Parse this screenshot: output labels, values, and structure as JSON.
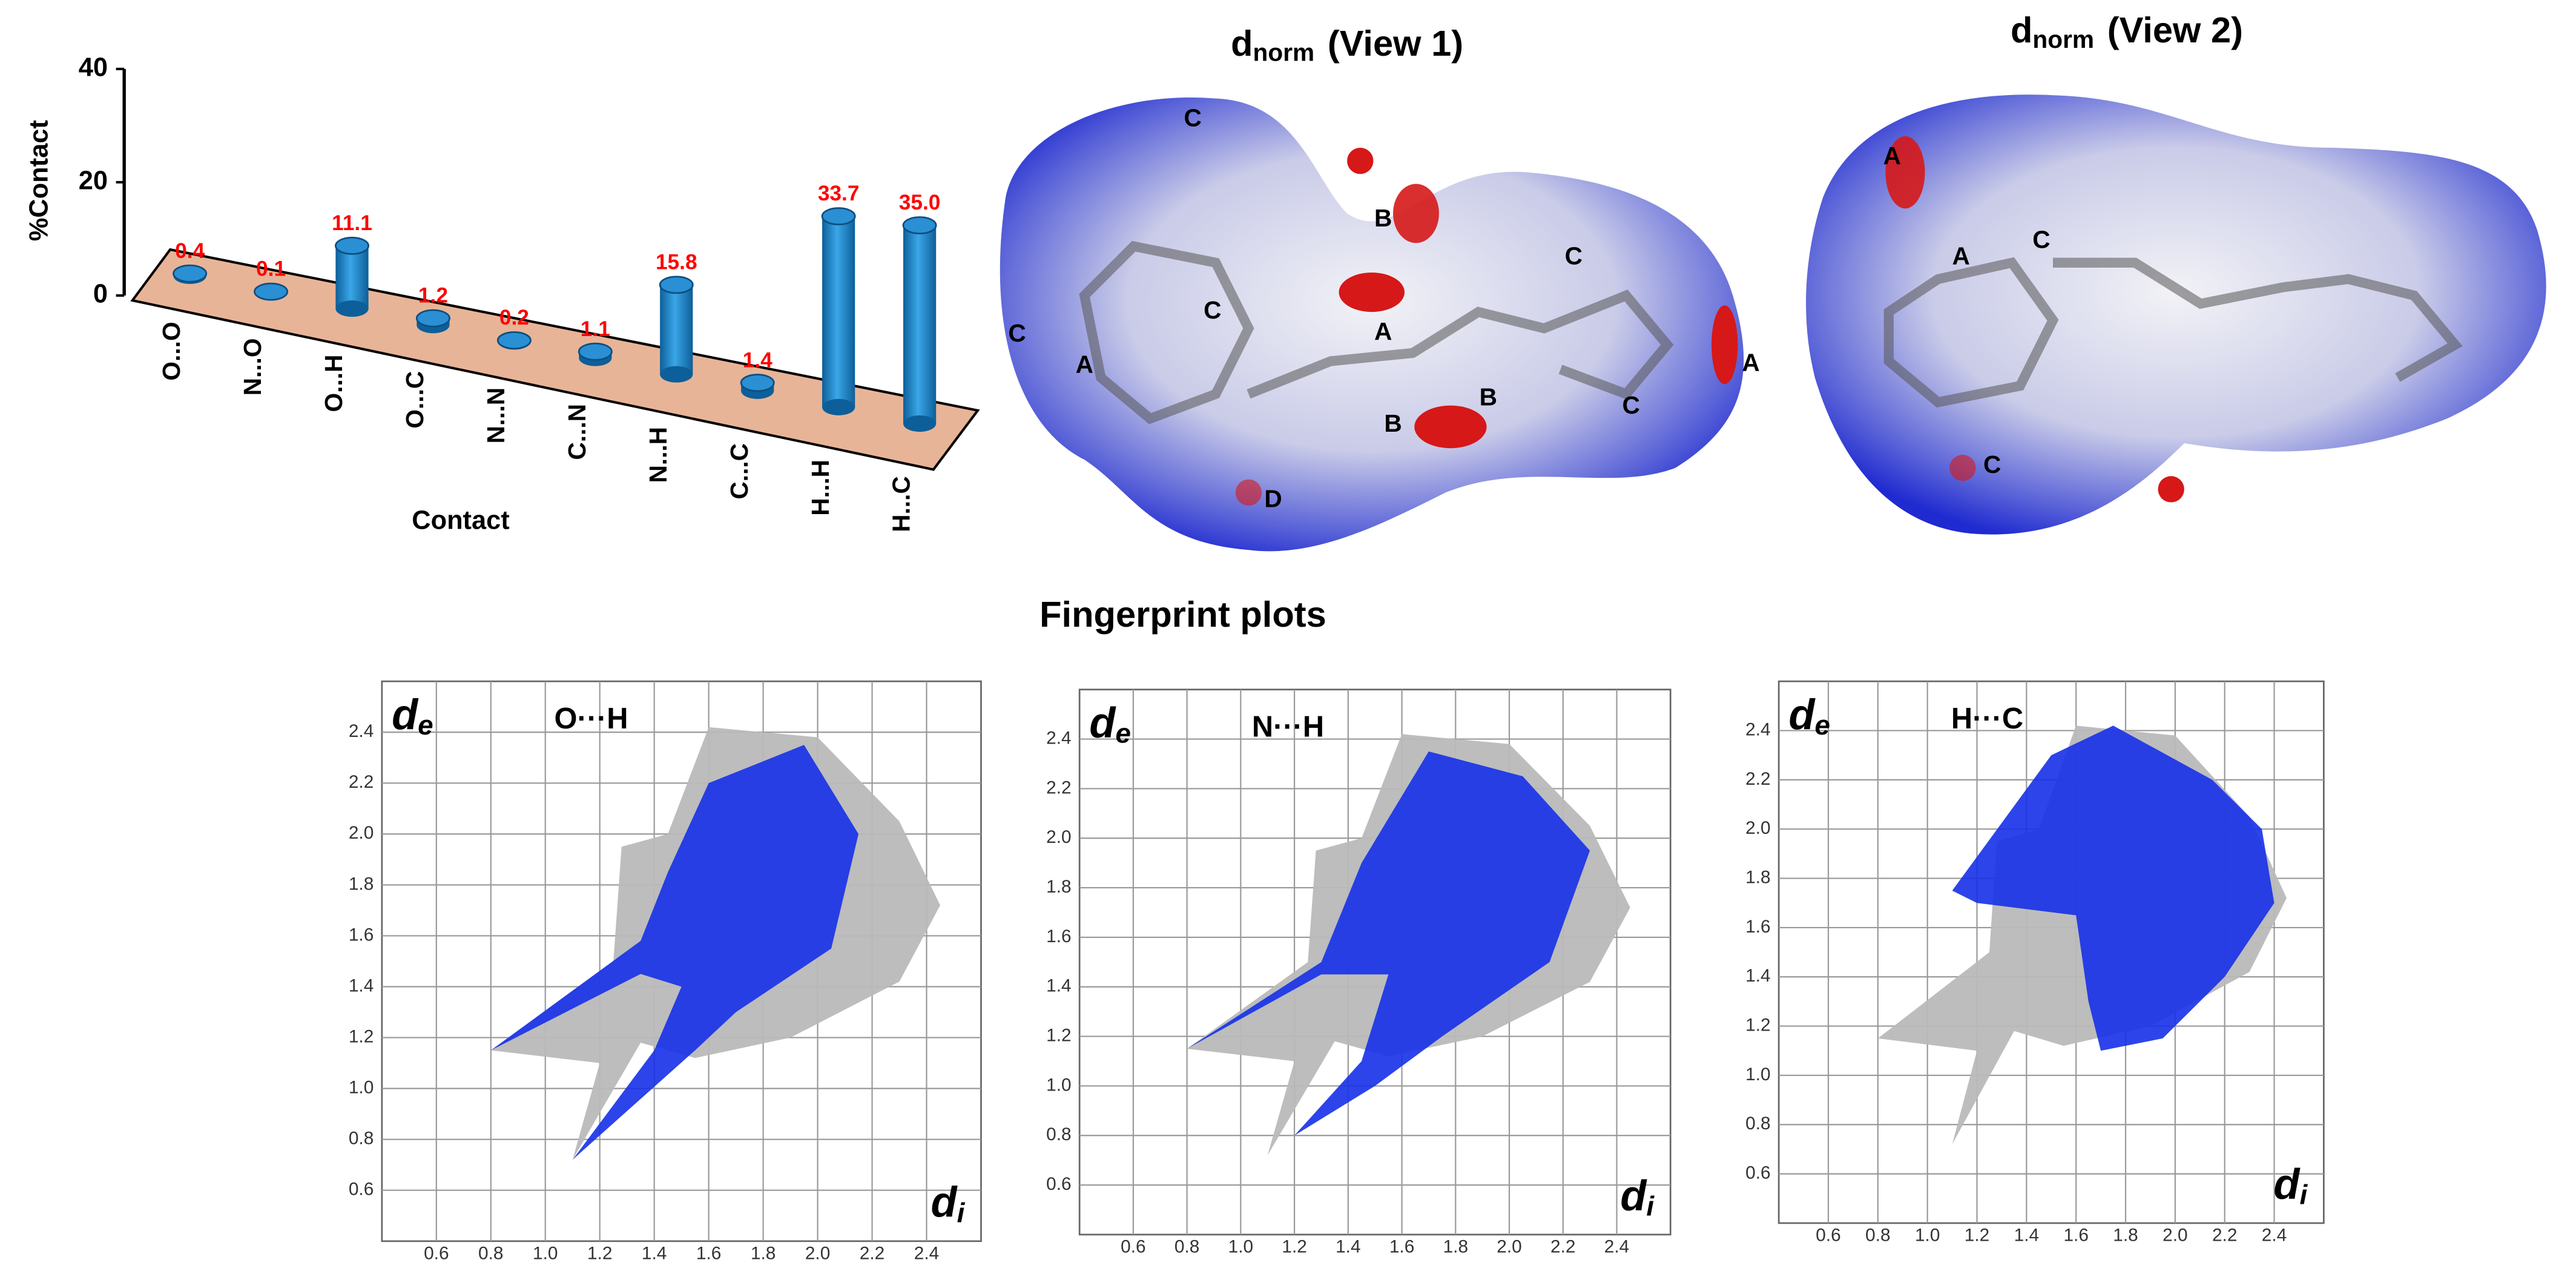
{
  "chart_data": [
    {
      "type": "bar3d",
      "ylabel": "%Contact",
      "xlabel": "Contact",
      "categories": [
        "O...O",
        "N...O",
        "O...H",
        "O...C",
        "N...N",
        "C...N",
        "N...H",
        "C...C",
        "H...H",
        "H...C"
      ],
      "values": [
        0.4,
        0.1,
        11.1,
        1.2,
        0.2,
        1.1,
        15.8,
        1.4,
        33.7,
        35.0
      ],
      "value_labels": [
        "0.4",
        "0.1",
        "11.1",
        "1.2",
        "0.2",
        "1.1",
        "15.8",
        "1.4",
        "33.7",
        "35.0"
      ],
      "ylim": [
        0,
        40
      ],
      "yticks": [
        0,
        20,
        40
      ],
      "color": "#1b8ad0",
      "label_color": "#ff0000",
      "floor_color": "#e8b497"
    },
    {
      "type": "fingerprint",
      "title": "O···H",
      "xlabel": "d",
      "xlabel_sub": "i",
      "ylabel": "d",
      "ylabel_sub": "e",
      "xlim": [
        0.4,
        2.6
      ],
      "ylim": [
        0.4,
        2.6
      ],
      "xticks": [
        0.6,
        0.8,
        {
          "value": 1,
          "label": "1.0"
        },
        1.2,
        1.4,
        1.6,
        1.8,
        {
          "value": 2,
          "label": "2.0"
        },
        2.2,
        2.4
      ],
      "yticks": [
        0.6,
        0.8,
        {
          "value": 1,
          "label": "1.0"
        },
        1.2,
        1.4,
        1.6,
        1.8,
        {
          "value": 2,
          "label": "2.0"
        },
        2.2,
        2.4
      ],
      "grid": true
    },
    {
      "type": "fingerprint",
      "title": "N···H",
      "xlabel": "d",
      "xlabel_sub": "i",
      "ylabel": "d",
      "ylabel_sub": "e",
      "xlim": [
        0.4,
        2.6
      ],
      "ylim": [
        0.4,
        2.6
      ],
      "xticks": [
        0.6,
        0.8,
        {
          "value": 1,
          "label": "1.0"
        },
        1.2,
        1.4,
        1.6,
        1.8,
        {
          "value": 2,
          "label": "2.0"
        },
        2.2,
        2.4
      ],
      "yticks": [
        0.6,
        0.8,
        {
          "value": 1,
          "label": "1.0"
        },
        1.2,
        1.4,
        1.6,
        1.8,
        {
          "value": 2,
          "label": "2.0"
        },
        2.2,
        2.4
      ],
      "grid": true
    },
    {
      "type": "fingerprint",
      "title": "H···C",
      "xlabel": "d",
      "xlabel_sub": "i",
      "ylabel": "d",
      "ylabel_sub": "e",
      "xlim": [
        0.4,
        2.6
      ],
      "ylim": [
        0.4,
        2.6
      ],
      "xticks": [
        0.6,
        0.8,
        {
          "value": 1,
          "label": "1.0"
        },
        1.2,
        1.4,
        1.6,
        1.8,
        {
          "value": 2,
          "label": "2.0"
        },
        2.2,
        2.4
      ],
      "yticks": [
        0.6,
        0.8,
        {
          "value": 1,
          "label": "1.0"
        },
        1.2,
        1.4,
        1.6,
        1.8,
        {
          "value": 2,
          "label": "2.0"
        },
        2.2,
        2.4
      ],
      "grid": true
    }
  ],
  "surfaces": [
    {
      "title": "d",
      "title_sub": "norm",
      "title_suffix": "(View 1)",
      "labels": [
        "C",
        "B",
        "C",
        "C",
        "A",
        "C",
        "A",
        "B",
        "B",
        "C",
        "A",
        "D"
      ]
    },
    {
      "title": "d",
      "title_sub": "norm",
      "title_suffix": "(View 2)",
      "labels": [
        "A",
        "A",
        "C",
        "C"
      ]
    }
  ],
  "fingerprint_heading": "Fingerprint plots"
}
